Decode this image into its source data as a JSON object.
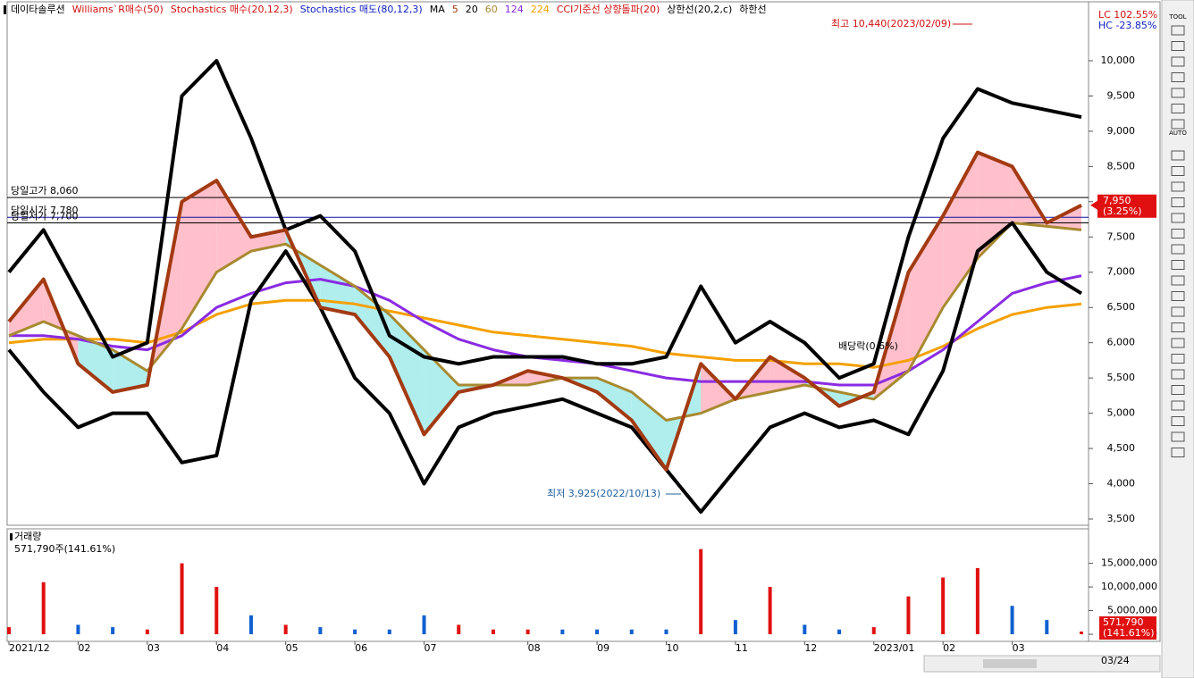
{
  "chart_data": {
    "type": "line",
    "legend_before": [
      {
        "text": "데이타솔루션",
        "color": "#000000"
      },
      {
        "text": "Williams`R매수(50)",
        "color": "#d01010"
      },
      {
        "text": "Stochastics 매수(20,12,3)",
        "color": "#d01010"
      },
      {
        "text": "Stochastics 매도(80,12,3)",
        "color": "#1020c0"
      },
      {
        "text": "MA",
        "color": "#000000"
      }
    ],
    "legend_mid": {
      "text": "20",
      "color": "#000000"
    },
    "legend_after": [
      {
        "text": "CCI기준선 상향돌파(20)",
        "color": "#d01010"
      }
    ],
    "categories": [
      "2021/12",
      null,
      "02",
      null,
      "03",
      null,
      "04",
      null,
      "05",
      null,
      "06",
      null,
      "07",
      null,
      null,
      "08",
      null,
      "09",
      null,
      "10",
      null,
      "11",
      null,
      "12",
      null,
      "2023/01",
      null,
      "02",
      null,
      "03",
      null,
      null
    ],
    "series": [
      {
        "name": "5",
        "color": "#a33a12",
        "width": 4,
        "values": [
          6300,
          6900,
          5700,
          5300,
          5400,
          8000,
          8300,
          7500,
          7600,
          6500,
          6400,
          5800,
          4700,
          5300,
          5400,
          5600,
          5500,
          5300,
          4900,
          4200,
          5700,
          5200,
          5800,
          5500,
          5100,
          5300,
          7000,
          7800,
          8700,
          8500,
          7700,
          7950
        ]
      },
      {
        "name": "60",
        "color": "#a88a30",
        "width": 3,
        "values": [
          6100,
          6300,
          6100,
          5900,
          5600,
          6200,
          7000,
          7300,
          7400,
          7100,
          6800,
          6400,
          5900,
          5400,
          5400,
          5400,
          5500,
          5500,
          5300,
          4900,
          5000,
          5200,
          5300,
          5400,
          5300,
          5200,
          5600,
          6500,
          7200,
          7700,
          7650,
          7600
        ]
      },
      {
        "name": "124",
        "color": "#8a2be2",
        "width": 3,
        "values": [
          6100,
          6100,
          6050,
          5950,
          5900,
          6100,
          6500,
          6700,
          6850,
          6900,
          6800,
          6600,
          6300,
          6050,
          5900,
          5800,
          5750,
          5700,
          5600,
          5500,
          5450,
          5450,
          5450,
          5450,
          5400,
          5400,
          5600,
          5900,
          6300,
          6700,
          6850,
          6950
        ]
      },
      {
        "name": "224",
        "color": "#f5a000",
        "width": 3,
        "values": [
          6000,
          6050,
          6050,
          6050,
          6000,
          6150,
          6400,
          6550,
          6600,
          6600,
          6550,
          6450,
          6350,
          6250,
          6150,
          6100,
          6050,
          6000,
          5950,
          5850,
          5800,
          5750,
          5750,
          5700,
          5700,
          5650,
          5750,
          5950,
          6200,
          6400,
          6500,
          6550
        ]
      },
      {
        "name": "상한선(20,2,c)",
        "color": "#000000",
        "width": 4,
        "values": [
          7000,
          7600,
          6700,
          5800,
          6000,
          9500,
          10000,
          8900,
          7600,
          7800,
          7300,
          6100,
          5800,
          5700,
          5800,
          5800,
          5800,
          5700,
          5700,
          5800,
          6800,
          6000,
          6300,
          6000,
          5500,
          5700,
          7500,
          8900,
          9600,
          9400,
          9300,
          9200
        ]
      },
      {
        "name": "하한선",
        "color": "#000000",
        "width": 4,
        "values": [
          5900,
          5300,
          4800,
          5000,
          5000,
          4300,
          4400,
          6600,
          7300,
          6500,
          5500,
          5000,
          4000,
          4800,
          5000,
          5100,
          5200,
          5000,
          4800,
          4200,
          3600,
          4200,
          4800,
          5000,
          4800,
          4900,
          4700,
          5600,
          7300,
          7700,
          7000,
          6700
        ]
      }
    ],
    "ylim": [
      3411,
      10760
    ],
    "yticks": [
      {
        "value": 3500,
        "label": "3,500"
      },
      {
        "value": 4000,
        "label": "4,000"
      },
      {
        "value": 4500,
        "label": "4,500"
      },
      {
        "value": 5000,
        "label": "5,000"
      },
      {
        "value": 5500,
        "label": "5,500"
      },
      {
        "value": 6000,
        "label": "6,000"
      },
      {
        "value": 6500,
        "label": "6,500"
      },
      {
        "value": 7000,
        "label": "7,000"
      },
      {
        "value": 7500,
        "label": "7,500"
      },
      {
        "value": 8000,
        "label": "8,000"
      },
      {
        "value": 8500,
        "label": "8,500"
      },
      {
        "value": 9000,
        "label": "9,000"
      },
      {
        "value": 9500,
        "label": "9,500"
      },
      {
        "value": 10000,
        "label": "10,000"
      }
    ],
    "levels": [
      {
        "label": "당일고가 8,060",
        "value": 8060,
        "color": "#000000"
      },
      {
        "label": "당일시가 7,780",
        "value": 7780,
        "color": "#1010a0"
      },
      {
        "label": "당일저가 7,700",
        "value": 7700,
        "color": "#000000"
      }
    ],
    "annotations": [
      {
        "text": "최고 10,440(2023/02/09)",
        "color": "#d01010"
      },
      {
        "text": "최저 3,925(2022/10/13)",
        "color": "#2060a0"
      },
      {
        "text": "배당락(0.6%)",
        "color": "#000000"
      }
    ],
    "range_labels": [
      {
        "text": "LC 102.55%",
        "color": "#d01010"
      },
      {
        "text": "HC -23.85%",
        "color": "#1020c0"
      }
    ],
    "last_price": {
      "value": 7950,
      "label": "7,950",
      "change": "(3.25%)"
    },
    "volume": {
      "title": "거래량",
      "summary": "571,790주(141.61%)",
      "values": [
        1500000,
        11000000,
        2000000,
        1500000,
        1000000,
        15000000,
        10000000,
        4000000,
        2000000,
        1500000,
        1000000,
        1000000,
        4000000,
        2000000,
        1000000,
        1000000,
        1000000,
        1000000,
        1000000,
        1000000,
        18000000,
        3000000,
        10000000,
        2000000,
        1000000,
        1500000,
        8000000,
        12000000,
        14000000,
        6000000,
        3000000,
        571790
      ],
      "ylim": [
        -1130000,
        20400000
      ],
      "yticks": [
        0,
        {
          "value": 5000000,
          "label": "5,000,000"
        },
        {
          "value": 10000000,
          "label": "10,000,000"
        },
        {
          "value": 15000000,
          "label": "15,000,000"
        }
      ],
      "last": {
        "label": "571,790",
        "change": "(141.61%)"
      }
    },
    "x_cursor_label": "03/24",
    "toolbar": [
      "TOOL",
      "AUTO"
    ]
  }
}
